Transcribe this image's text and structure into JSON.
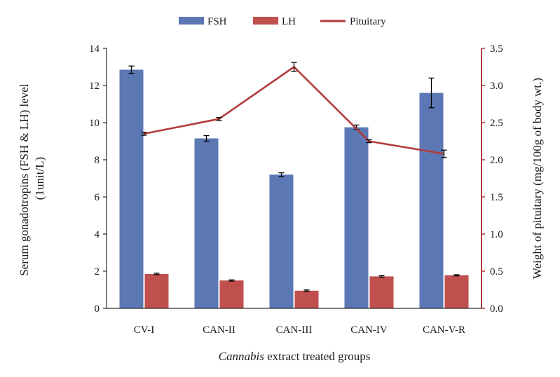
{
  "chart_data": {
    "type": "bar",
    "categories": [
      "CV-I",
      "CAN-II",
      "CAN-III",
      "CAN-IV",
      "CAN-V-R"
    ],
    "series": [
      {
        "name": "FSH",
        "kind": "bar",
        "axis": "left",
        "color": "#5b77b4",
        "values": [
          12.85,
          9.15,
          7.2,
          9.75,
          11.6
        ],
        "errors": [
          0.2,
          0.15,
          0.1,
          0.12,
          0.8
        ]
      },
      {
        "name": "LH",
        "kind": "bar",
        "axis": "left",
        "color": "#c0504d",
        "values": [
          1.85,
          1.5,
          0.95,
          1.72,
          1.78
        ],
        "errors": [
          0.04,
          0.03,
          0.04,
          0.04,
          0.03
        ]
      },
      {
        "name": "Pituitary",
        "kind": "line",
        "axis": "right",
        "color": "#b33a3a",
        "values": [
          2.35,
          2.55,
          3.25,
          2.25,
          2.08
        ],
        "errors": [
          0.02,
          0.02,
          0.06,
          0.02,
          0.05
        ]
      }
    ],
    "xlabel_italic": "Cannabis",
    "xlabel_rest": " extract treated groups",
    "ylabel_line1": "Serum gonadotropins (FSH & LH) level",
    "ylabel_line2": "(1unit/L)",
    "y2label": "Weight of pituitary (mg/100g of body wt.)",
    "ylim": [
      0,
      14
    ],
    "y2lim": [
      0,
      3.5
    ],
    "yticks": [
      0,
      2,
      4,
      6,
      8,
      10,
      12,
      14
    ],
    "y2ticks": [
      "0.0",
      "0.5",
      "1.0",
      "1.5",
      "2.0",
      "2.5",
      "3.0",
      "3.5"
    ],
    "right_axis_color": "#b33a3a",
    "legend_position": "top-center",
    "grid": false
  }
}
